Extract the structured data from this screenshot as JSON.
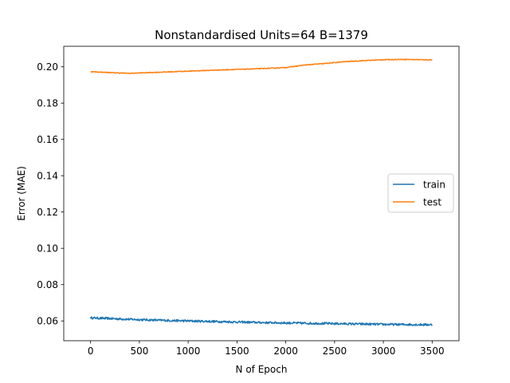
{
  "chart_data": {
    "type": "line",
    "title": "Nonstandardised Units=64 B=1379",
    "xlabel": "N of Epoch",
    "ylabel": "Error (MAE)",
    "xlim": [
      -275,
      3775
    ],
    "ylim": [
      0.0491,
      0.2113
    ],
    "xticks": [
      0,
      500,
      1000,
      1500,
      2000,
      2500,
      3000,
      3500
    ],
    "yticks": [
      0.06,
      0.08,
      0.1,
      0.12,
      0.14,
      0.16,
      0.18,
      0.2
    ],
    "xtick_labels": [
      "0",
      "500",
      "1000",
      "1500",
      "2000",
      "2500",
      "3000",
      "3500"
    ],
    "ytick_labels": [
      "0.06",
      "0.08",
      "0.10",
      "0.12",
      "0.14",
      "0.16",
      "0.18",
      "0.20"
    ],
    "grid": false,
    "legend_position": "center-right",
    "series": [
      {
        "name": "train",
        "color": "#1f77b4",
        "noise": 0.0006,
        "x": [
          0,
          250,
          500,
          750,
          1000,
          1250,
          1500,
          1750,
          2000,
          2250,
          2500,
          2750,
          3000,
          3250,
          3500
        ],
        "values": [
          0.0617,
          0.0612,
          0.0607,
          0.0603,
          0.06,
          0.0597,
          0.0594,
          0.0591,
          0.0589,
          0.0587,
          0.0585,
          0.0583,
          0.0581,
          0.058,
          0.0579
        ]
      },
      {
        "name": "test",
        "color": "#ff7f0e",
        "noise": 0.0002,
        "x": [
          0,
          250,
          400,
          600,
          800,
          1000,
          1200,
          1400,
          1600,
          1800,
          2000,
          2200,
          2400,
          2600,
          2800,
          3000,
          3200,
          3300,
          3500
        ],
        "values": [
          0.1973,
          0.1967,
          0.1964,
          0.1968,
          0.1972,
          0.1976,
          0.198,
          0.1984,
          0.1987,
          0.1991,
          0.1996,
          0.201,
          0.2018,
          0.2028,
          0.2034,
          0.2039,
          0.2041,
          0.204,
          0.2038
        ]
      }
    ]
  }
}
